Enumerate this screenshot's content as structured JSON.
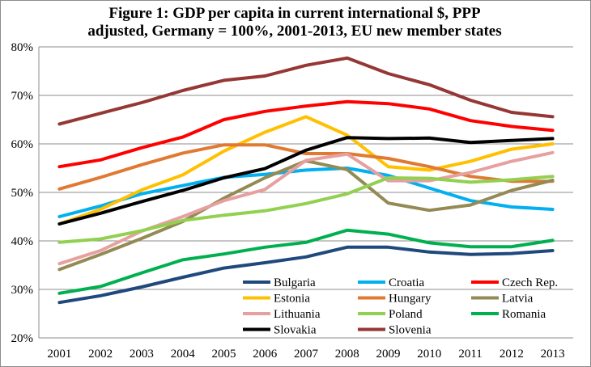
{
  "chart_data": {
    "type": "line",
    "title": "Figure 1: GDP per capita in current international $, PPP",
    "subtitle": "adjusted, Germany = 100%, 2001-2013, EU new member states",
    "xlabel": "",
    "ylabel": "",
    "ylim": [
      0.2,
      0.8
    ],
    "yticks": [
      "20%",
      "30%",
      "40%",
      "50%",
      "60%",
      "70%",
      "80%"
    ],
    "grid": true,
    "legend_position": "bottom-right",
    "x": [
      "2001",
      "2002",
      "2003",
      "2004",
      "2005",
      "2006",
      "2007",
      "2008",
      "2009",
      "2010",
      "2011",
      "2012",
      "2013"
    ],
    "series": [
      {
        "name": "Bulgaria",
        "color": "#1f497d",
        "values": [
          0.273,
          0.287,
          0.305,
          0.325,
          0.344,
          0.355,
          0.367,
          0.387,
          0.387,
          0.377,
          0.372,
          0.374,
          0.38
        ]
      },
      {
        "name": "Croatia",
        "color": "#00b0f0",
        "values": [
          0.45,
          0.472,
          0.497,
          0.514,
          0.531,
          0.537,
          0.546,
          0.55,
          0.535,
          0.509,
          0.483,
          0.47,
          0.465
        ]
      },
      {
        "name": "Czech Rep.",
        "color": "#ff0000",
        "values": [
          0.553,
          0.567,
          0.592,
          0.614,
          0.65,
          0.667,
          0.678,
          0.687,
          0.683,
          0.672,
          0.648,
          0.636,
          0.628
        ]
      },
      {
        "name": "Estonia",
        "color": "#ffc000",
        "values": [
          0.435,
          0.465,
          0.505,
          0.536,
          0.585,
          0.624,
          0.656,
          0.618,
          0.553,
          0.546,
          0.564,
          0.589,
          0.6
        ]
      },
      {
        "name": "Hungary",
        "color": "#e07a33",
        "values": [
          0.507,
          0.531,
          0.557,
          0.581,
          0.598,
          0.598,
          0.58,
          0.58,
          0.57,
          0.553,
          0.533,
          0.523,
          0.523
        ]
      },
      {
        "name": "Latvia",
        "color": "#948a54",
        "values": [
          0.341,
          0.372,
          0.405,
          0.44,
          0.488,
          0.53,
          0.565,
          0.547,
          0.478,
          0.463,
          0.474,
          0.504,
          0.525
        ]
      },
      {
        "name": "Lithuania",
        "color": "#e6a0a0",
        "values": [
          0.353,
          0.38,
          0.42,
          0.45,
          0.483,
          0.506,
          0.566,
          0.579,
          0.524,
          0.524,
          0.541,
          0.564,
          0.582
        ]
      },
      {
        "name": "Poland",
        "color": "#92d050",
        "values": [
          0.397,
          0.404,
          0.421,
          0.442,
          0.453,
          0.462,
          0.477,
          0.497,
          0.53,
          0.529,
          0.521,
          0.526,
          0.533
        ]
      },
      {
        "name": "Romania",
        "color": "#00b050",
        "values": [
          0.292,
          0.306,
          0.334,
          0.361,
          0.373,
          0.387,
          0.397,
          0.422,
          0.414,
          0.396,
          0.388,
          0.388,
          0.401
        ]
      },
      {
        "name": "Slovakia",
        "color": "#000000",
        "values": [
          0.435,
          0.457,
          0.481,
          0.504,
          0.53,
          0.549,
          0.587,
          0.613,
          0.611,
          0.612,
          0.603,
          0.607,
          0.611
        ]
      },
      {
        "name": "Slovenia",
        "color": "#953735",
        "values": [
          0.641,
          0.663,
          0.685,
          0.71,
          0.731,
          0.74,
          0.762,
          0.777,
          0.745,
          0.722,
          0.69,
          0.665,
          0.656
        ]
      }
    ]
  }
}
